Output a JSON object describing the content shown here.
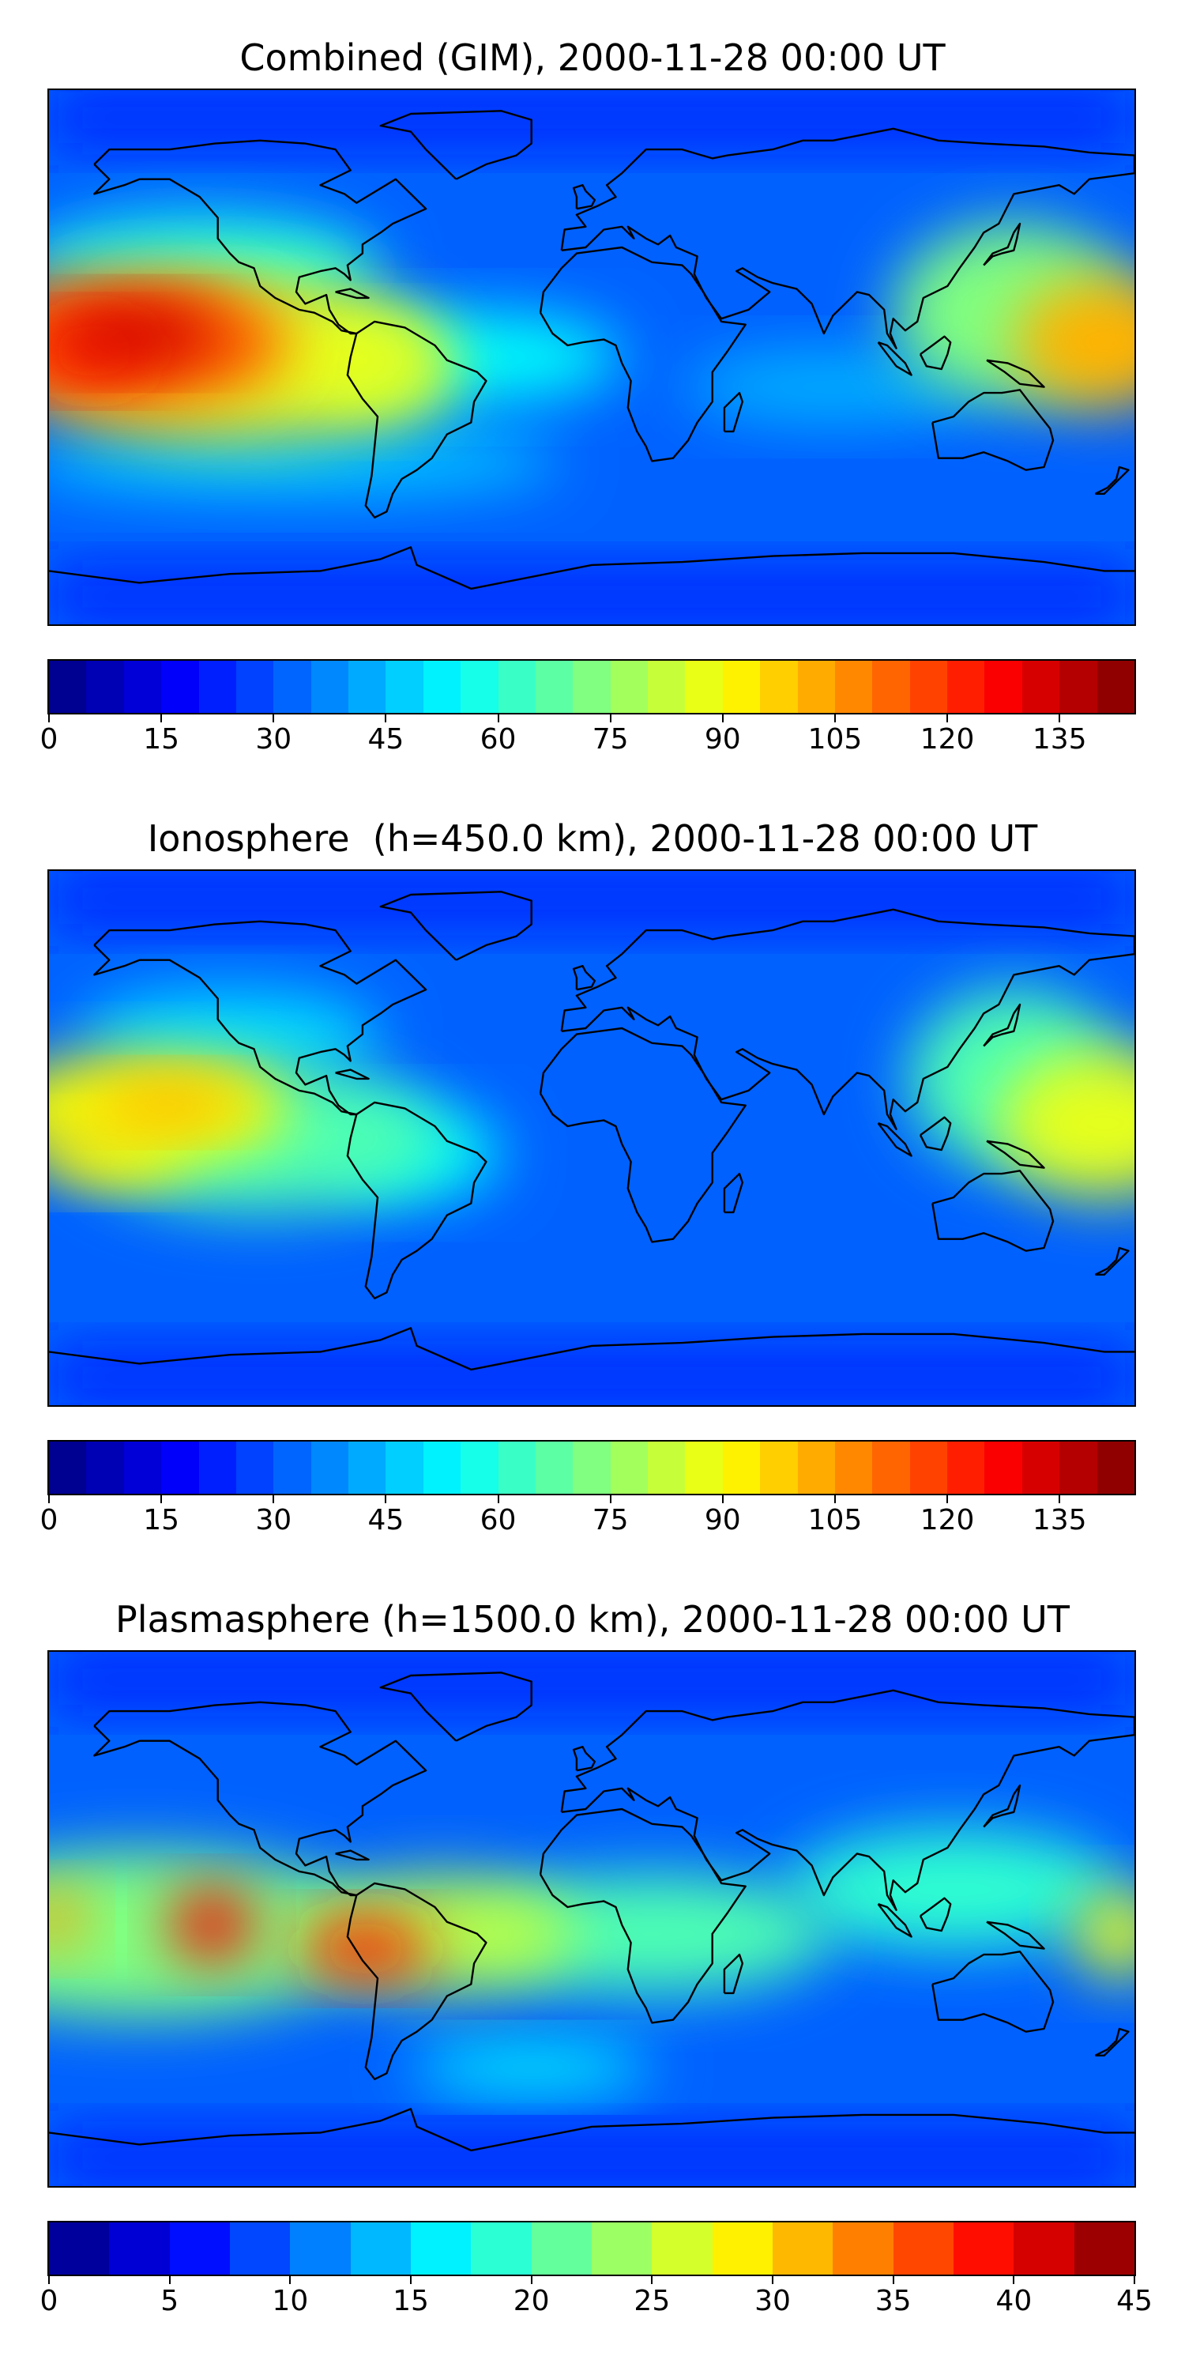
{
  "panels": [
    {
      "title": "Combined (GIM), 2000-11-28 00:00 UT",
      "ticks": [
        "0",
        "15",
        "30",
        "45",
        "60",
        "75",
        "90",
        "105",
        "120",
        "135"
      ],
      "vmin": 0,
      "vmax": 145,
      "n_colors": 29,
      "blobs": [
        {
          "lon": -155,
          "lat": 5,
          "rx": 55,
          "ry": 22,
          "level": 0.78
        },
        {
          "lon": -150,
          "lat": 8,
          "rx": 28,
          "ry": 10,
          "level": 0.92
        },
        {
          "lon": -165,
          "lat": 2,
          "rx": 22,
          "ry": 10,
          "level": 0.85
        },
        {
          "lon": -120,
          "lat": 0,
          "rx": 70,
          "ry": 28,
          "level": 0.6
        },
        {
          "lon": -70,
          "lat": -5,
          "rx": 25,
          "ry": 15,
          "level": 0.55
        },
        {
          "lon": 170,
          "lat": 5,
          "rx": 30,
          "ry": 22,
          "level": 0.7
        },
        {
          "lon": 140,
          "lat": 15,
          "rx": 40,
          "ry": 30,
          "level": 0.5
        },
        {
          "lon": -40,
          "lat": 0,
          "rx": 50,
          "ry": 15,
          "level": 0.38
        },
        {
          "lon": 80,
          "lat": -10,
          "rx": 50,
          "ry": 12,
          "level": 0.3
        },
        {
          "lon": -130,
          "lat": 30,
          "rx": 60,
          "ry": 18,
          "level": 0.4
        },
        {
          "lon": -100,
          "lat": -35,
          "rx": 90,
          "ry": 12,
          "level": 0.32
        }
      ]
    },
    {
      "title": "Ionosphere  (h=450.0 km), 2000-11-28 00:00 UT",
      "ticks": [
        "0",
        "15",
        "30",
        "45",
        "60",
        "75",
        "90",
        "105",
        "120",
        "135"
      ],
      "vmin": 0,
      "vmax": 145,
      "n_colors": 29,
      "blobs": [
        {
          "lon": -150,
          "lat": 10,
          "rx": 50,
          "ry": 18,
          "level": 0.62
        },
        {
          "lon": -140,
          "lat": 12,
          "rx": 25,
          "ry": 8,
          "level": 0.7
        },
        {
          "lon": -160,
          "lat": -5,
          "rx": 25,
          "ry": 10,
          "level": 0.64
        },
        {
          "lon": -110,
          "lat": 0,
          "rx": 60,
          "ry": 25,
          "level": 0.45
        },
        {
          "lon": 170,
          "lat": 5,
          "rx": 35,
          "ry": 25,
          "level": 0.6
        },
        {
          "lon": 140,
          "lat": 20,
          "rx": 35,
          "ry": 30,
          "level": 0.45
        },
        {
          "lon": -60,
          "lat": -5,
          "rx": 30,
          "ry": 15,
          "level": 0.38
        },
        {
          "lon": -120,
          "lat": 35,
          "rx": 50,
          "ry": 15,
          "level": 0.34
        }
      ]
    },
    {
      "title": "Plasmasphere (h=1500.0 km), 2000-11-28 00:00 UT",
      "ticks": [
        "0",
        "5",
        "10",
        "15",
        "20",
        "25",
        "30",
        "35",
        "40",
        "45"
      ],
      "vmin": 0,
      "vmax": 45,
      "n_colors": 18,
      "blobs": [
        {
          "lon": -150,
          "lat": -5,
          "rx": 80,
          "ry": 28,
          "level": 0.5
        },
        {
          "lon": -126,
          "lat": -2,
          "rx": 14,
          "ry": 12,
          "level": 0.88
        },
        {
          "lon": -75,
          "lat": -10,
          "rx": 22,
          "ry": 10,
          "level": 0.85
        },
        {
          "lon": -178,
          "lat": 0,
          "rx": 10,
          "ry": 10,
          "level": 0.72
        },
        {
          "lon": -50,
          "lat": -5,
          "rx": 45,
          "ry": 20,
          "level": 0.55
        },
        {
          "lon": 20,
          "lat": -5,
          "rx": 60,
          "ry": 20,
          "level": 0.45
        },
        {
          "lon": 120,
          "lat": 10,
          "rx": 55,
          "ry": 20,
          "level": 0.42
        },
        {
          "lon": 175,
          "lat": -5,
          "rx": 15,
          "ry": 15,
          "level": 0.6
        },
        {
          "lon": -20,
          "lat": -50,
          "rx": 40,
          "ry": 8,
          "level": 0.38
        }
      ]
    }
  ],
  "colors": {
    "ocean_background": "#0a28f5",
    "coastline": "#000000"
  }
}
